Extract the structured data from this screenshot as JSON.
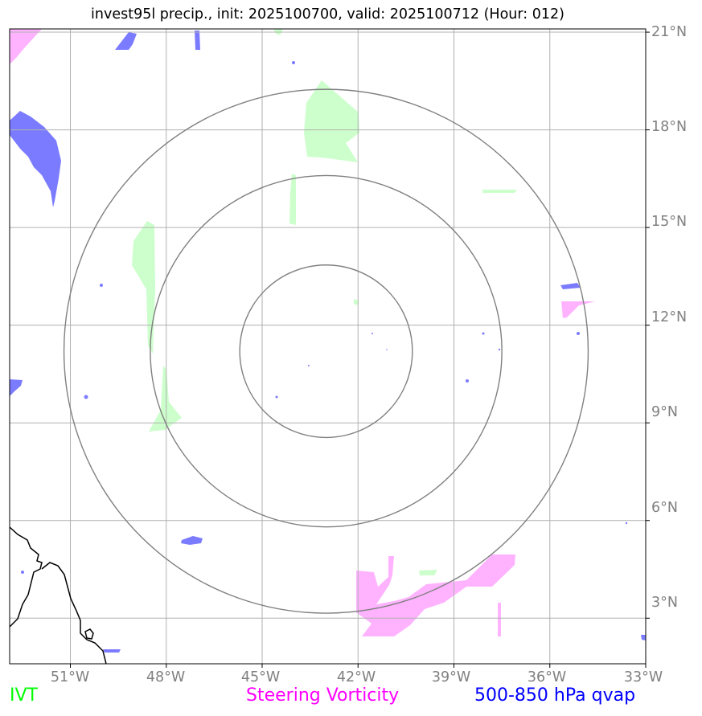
{
  "title": "invest95l precip., init: 2025100700, valid: 2025100712 (Hour: 012)",
  "lat_labels": [
    "21°N",
    "18°N",
    "15°N",
    "12°N",
    "9°N",
    "6°N",
    "3°N"
  ],
  "lon_labels": [
    "51°W",
    "48°W",
    "45°W",
    "42°W",
    "39°W",
    "36°W",
    "33°W"
  ],
  "legend": [
    {
      "label": "IVT",
      "color": "#00ff00"
    },
    {
      "label": "Steering Vorticity",
      "color": "#ff00ff"
    },
    {
      "label": "500-850 hPa qvap",
      "color": "#0000ff"
    }
  ],
  "colors": {
    "ivt_fill": "#ccffcc",
    "vorticity_fill": "#ffb3ff",
    "qvap_fill": "#7b7bff",
    "gridline": "#b0b0b0",
    "range_rings": "#808080",
    "coastline": "#000000",
    "axis_label": "#808080"
  },
  "map_extent": {
    "lon_min": -52.9,
    "lon_max": -33.0,
    "lat_min": 1.6,
    "lat_max": 21.1
  },
  "gridlines": {
    "lons": [
      -51,
      -48,
      -45,
      -42,
      -39,
      -36,
      -33
    ],
    "lats": [
      21,
      18,
      15,
      12,
      9,
      6,
      3
    ]
  },
  "storm_center": {
    "lon": -43.0,
    "lat": 11.2
  },
  "range_rings_deg": [
    2.7,
    5.5,
    8.2
  ]
}
